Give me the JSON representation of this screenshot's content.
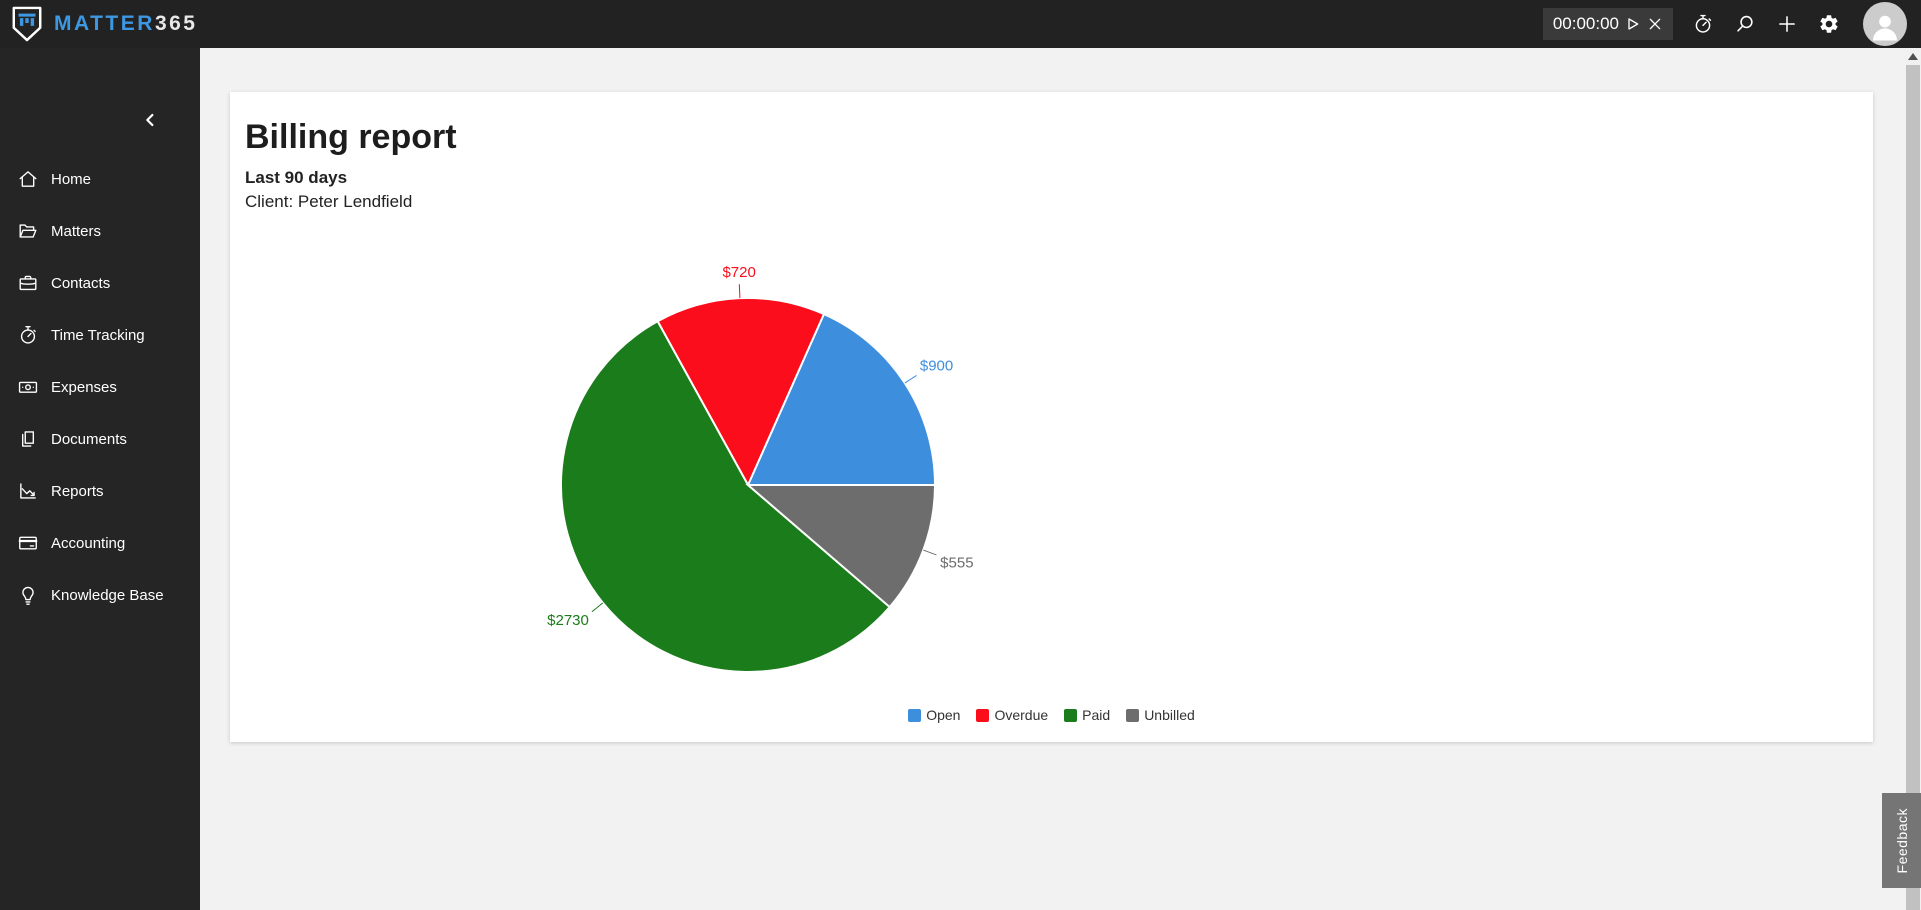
{
  "header": {
    "brand_primary": "MATTER",
    "brand_secondary": "365",
    "timer_value": "00:00:00"
  },
  "sidebar": {
    "items": [
      {
        "label": "Home",
        "icon": "home"
      },
      {
        "label": "Matters",
        "icon": "folder-open"
      },
      {
        "label": "Contacts",
        "icon": "briefcase"
      },
      {
        "label": "Time Tracking",
        "icon": "stopwatch"
      },
      {
        "label": "Expenses",
        "icon": "banknote"
      },
      {
        "label": "Documents",
        "icon": "documents"
      },
      {
        "label": "Reports",
        "icon": "line-chart"
      },
      {
        "label": "Accounting",
        "icon": "credit-card"
      },
      {
        "label": "Knowledge Base",
        "icon": "lightbulb"
      }
    ]
  },
  "report": {
    "title": "Billing report",
    "subtitle": "Last 90 days",
    "client_line": "Client: Peter Lendfield"
  },
  "chart_data": {
    "type": "pie",
    "title": "Billing report",
    "legend_position": "bottom",
    "start_angle_deg": 0,
    "direction": "ccw",
    "total": 4905,
    "series": [
      {
        "name": "Open",
        "value": 900,
        "label": "$900",
        "color": "#3e8ede"
      },
      {
        "name": "Overdue",
        "value": 720,
        "label": "$720",
        "color": "#fb0d1b"
      },
      {
        "name": "Paid",
        "value": 2730,
        "label": "$2730",
        "color": "#1a7c1a"
      },
      {
        "name": "Unbilled",
        "value": 555,
        "label": "$555",
        "color": "#6d6d6d"
      }
    ]
  },
  "feedback_label": "Feedback",
  "colors": {
    "brand_blue": "#3e97e2",
    "header_bg": "#222222",
    "sidebar_bg": "#252525"
  }
}
